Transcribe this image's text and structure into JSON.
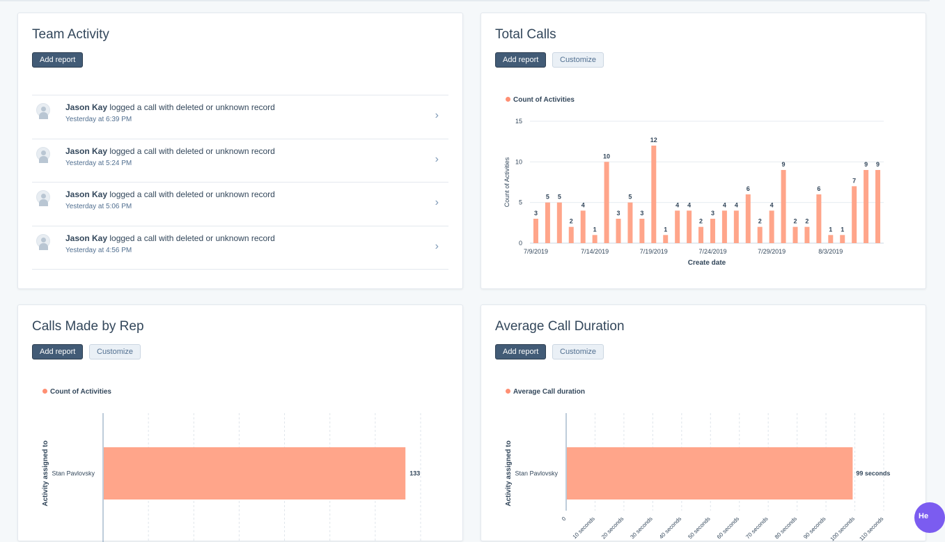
{
  "colors": {
    "bar": "#ffa58a",
    "accent": "#425b76",
    "legend_dot": "#ff8f73"
  },
  "team_activity": {
    "title": "Team Activity",
    "add_report": "Add report",
    "items": [
      {
        "name": "Jason Kay",
        "action": " logged a call with deleted or unknown record",
        "time": "Yesterday at 6:39 PM"
      },
      {
        "name": "Jason Kay",
        "action": " logged a call with deleted or unknown record",
        "time": "Yesterday at 5:24 PM"
      },
      {
        "name": "Jason Kay",
        "action": " logged a call with deleted or unknown record",
        "time": "Yesterday at 5:06 PM"
      },
      {
        "name": "Jason Kay",
        "action": " logged a call with deleted or unknown record",
        "time": "Yesterday at 4:56 PM"
      }
    ],
    "chevron_icon": "chevron-right-icon"
  },
  "total_calls": {
    "title": "Total Calls",
    "add_report": "Add report",
    "customize": "Customize",
    "legend": "Count of Activities"
  },
  "calls_by_rep": {
    "title": "Calls Made by Rep",
    "add_report": "Add report",
    "customize": "Customize",
    "legend": "Count of Activities"
  },
  "avg_duration": {
    "title": "Average Call Duration",
    "add_report": "Add report",
    "customize": "Customize",
    "legend": "Average Call duration"
  },
  "help_label": "He",
  "chart_data": [
    {
      "type": "bar",
      "title": "Total Calls",
      "xlabel": "Create date",
      "ylabel": "Count of Activities",
      "ylim": [
        0,
        15
      ],
      "yticks": [
        0,
        5,
        10,
        15
      ],
      "legend": [
        "Count of Activities"
      ],
      "x_tick_labels": [
        {
          "index": 0,
          "label": "7/9/2019"
        },
        {
          "index": 5,
          "label": "7/14/2019"
        },
        {
          "index": 10,
          "label": "7/19/2019"
        },
        {
          "index": 15,
          "label": "7/24/2019"
        },
        {
          "index": 20,
          "label": "7/29/2019"
        },
        {
          "index": 25,
          "label": "8/3/2019"
        }
      ],
      "values": [
        3,
        5,
        5,
        2,
        4,
        1,
        10,
        3,
        5,
        3,
        12,
        1,
        4,
        4,
        2,
        3,
        4,
        4,
        6,
        2,
        4,
        9,
        2,
        2,
        6,
        1,
        1,
        7,
        9,
        9
      ]
    },
    {
      "type": "bar",
      "orientation": "horizontal",
      "title": "Calls Made by Rep",
      "ylabel": "Activity assigned to",
      "legend": [
        "Count of Activities"
      ],
      "categories": [
        "Stan Pavlovsky"
      ],
      "values": [
        133
      ],
      "value_labels": [
        "133"
      ],
      "xlim": [
        0,
        140
      ]
    },
    {
      "type": "bar",
      "orientation": "horizontal",
      "title": "Average Call Duration",
      "ylabel": "Activity assigned to",
      "legend": [
        "Average Call duration"
      ],
      "categories": [
        "Stan Pavlovsky"
      ],
      "values": [
        99
      ],
      "value_labels": [
        "99 seconds"
      ],
      "xlim": [
        0,
        110
      ],
      "x_tick_labels": [
        "0",
        "10 seconds",
        "20 seconds",
        "30 seconds",
        "40 seconds",
        "50 seconds",
        "60 seconds",
        "70 seconds",
        "80 seconds",
        "90 seconds",
        "100 seconds",
        "110 seconds"
      ]
    }
  ]
}
